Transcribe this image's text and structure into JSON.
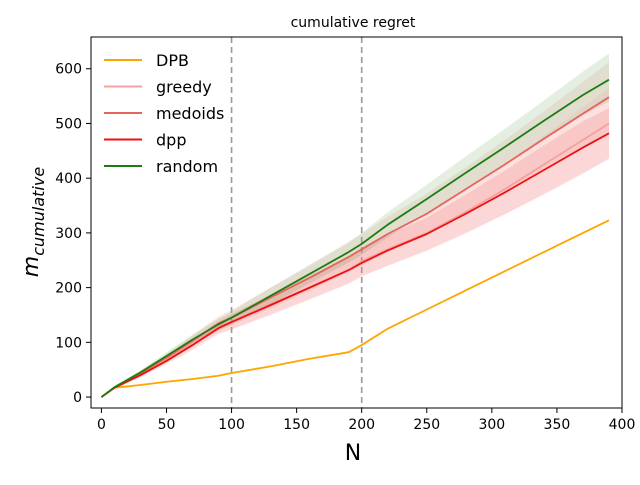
{
  "chart_data": {
    "type": "line",
    "title": "cumulative regret",
    "xlabel": "N",
    "ylabel": "m",
    "ylabel_subscript": "cumulative",
    "xlim": [
      -8,
      400
    ],
    "ylim": [
      -20,
      658
    ],
    "xticks": [
      0,
      50,
      100,
      150,
      200,
      250,
      300,
      350,
      400
    ],
    "yticks": [
      0,
      100,
      200,
      300,
      400,
      500,
      600
    ],
    "vlines": [
      100,
      200
    ],
    "grid": false,
    "legend_position": "top-left",
    "series": [
      {
        "name": "DPB",
        "color": "#ffa500",
        "x": [
          0,
          10,
          30,
          50,
          70,
          90,
          100,
          130,
          160,
          190,
          200,
          220,
          250,
          280,
          310,
          340,
          370,
          390
        ],
        "y": [
          0,
          17,
          22,
          28,
          33,
          39,
          44,
          56,
          70,
          82,
          95,
          125,
          160,
          195,
          230,
          265,
          300,
          323
        ]
      },
      {
        "name": "greedy",
        "color": "#f4a0a0",
        "x": [
          0,
          10,
          30,
          50,
          70,
          90,
          100,
          130,
          160,
          190,
          200,
          220,
          250,
          280,
          310,
          340,
          370,
          390
        ],
        "y": [
          0,
          17,
          42,
          70,
          100,
          130,
          138,
          170,
          200,
          232,
          248,
          270,
          300,
          338,
          380,
          425,
          470,
          500
        ],
        "band_low": [
          0,
          15,
          38,
          63,
          90,
          117,
          124,
          152,
          180,
          208,
          222,
          240,
          266,
          298,
          334,
          372,
          410,
          435
        ],
        "band_high": [
          0,
          19,
          46,
          77,
          110,
          143,
          152,
          188,
          220,
          256,
          274,
          300,
          334,
          378,
          426,
          478,
          530,
          565
        ]
      },
      {
        "name": "medoids",
        "color": "#e8635a",
        "x": [
          0,
          10,
          30,
          50,
          70,
          90,
          100,
          130,
          160,
          190,
          200,
          220,
          250,
          280,
          310,
          340,
          370,
          390
        ],
        "y": [
          0,
          17,
          43,
          72,
          103,
          135,
          145,
          182,
          218,
          256,
          270,
          298,
          335,
          380,
          425,
          472,
          518,
          548
        ],
        "band_low": [
          0,
          15,
          39,
          65,
          93,
          122,
          131,
          162,
          195,
          228,
          240,
          265,
          298,
          337,
          376,
          418,
          458,
          483
        ],
        "band_high": [
          0,
          19,
          47,
          79,
          113,
          148,
          159,
          200,
          240,
          282,
          298,
          330,
          372,
          420,
          470,
          522,
          576,
          612
        ]
      },
      {
        "name": "dpp",
        "color": "#ee1111",
        "x": [
          0,
          10,
          30,
          50,
          70,
          90,
          100,
          130,
          160,
          190,
          200,
          220,
          250,
          280,
          310,
          340,
          370,
          390
        ],
        "y": [
          0,
          17,
          40,
          66,
          95,
          126,
          137,
          168,
          200,
          232,
          245,
          268,
          298,
          335,
          374,
          415,
          456,
          482
        ],
        "band_low": [
          0,
          15,
          36,
          60,
          86,
          115,
          123,
          150,
          178,
          207,
          220,
          240,
          268,
          300,
          334,
          370,
          408,
          436
        ],
        "band_high": [
          0,
          19,
          44,
          72,
          104,
          137,
          151,
          186,
          222,
          257,
          270,
          296,
          328,
          370,
          414,
          460,
          504,
          528
        ]
      },
      {
        "name": "random",
        "color": "#1e7d12",
        "x": [
          0,
          10,
          30,
          50,
          70,
          90,
          100,
          130,
          160,
          190,
          200,
          220,
          250,
          280,
          310,
          340,
          370,
          390
        ],
        "y": [
          0,
          18,
          45,
          75,
          105,
          133,
          145,
          185,
          225,
          265,
          280,
          315,
          362,
          410,
          457,
          505,
          552,
          580
        ],
        "band_low": [
          0,
          16,
          41,
          68,
          96,
          122,
          133,
          170,
          208,
          246,
          260,
          292,
          336,
          381,
          425,
          470,
          515,
          540
        ],
        "band_high": [
          0,
          20,
          49,
          82,
          114,
          144,
          157,
          200,
          242,
          284,
          300,
          338,
          388,
          440,
          490,
          542,
          595,
          628
        ]
      }
    ]
  }
}
